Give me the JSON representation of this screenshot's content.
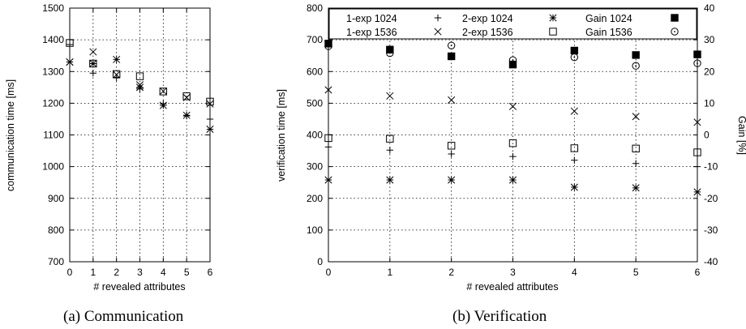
{
  "chart_data": [
    {
      "type": "scatter",
      "caption": "(a) Communication",
      "xlabel": "# revealed attributes",
      "ylabel": "communication time [ms]",
      "xlim": [
        0,
        6
      ],
      "ylim": [
        700,
        1500
      ],
      "xticks": [
        0,
        1,
        2,
        3,
        4,
        5,
        6
      ],
      "yticks": [
        700,
        800,
        900,
        1000,
        1100,
        1200,
        1300,
        1400,
        1500
      ],
      "grid": true,
      "series": [
        {
          "key": "exp1_1024",
          "marker": "plus",
          "x": [
            0,
            1,
            2,
            3,
            4,
            5,
            6
          ],
          "y": [
            1385,
            1295,
            1280,
            1245,
            1198,
            1160,
            1150
          ]
        },
        {
          "key": "exp1_1536",
          "marker": "cross",
          "x": [
            0,
            1,
            2,
            3,
            4,
            5,
            6
          ],
          "y": [
            1330,
            1362,
            1290,
            1258,
            1238,
            1218,
            1198
          ]
        },
        {
          "key": "exp2_1024",
          "marker": "star",
          "x": [
            0,
            1,
            2,
            3,
            4,
            5,
            6
          ],
          "y": [
            1330,
            1325,
            1338,
            1250,
            1193,
            1162,
            1118
          ]
        },
        {
          "key": "exp2_1536",
          "marker": "box",
          "x": [
            0,
            1,
            2,
            3,
            4,
            5,
            6
          ],
          "y": [
            1390,
            1325,
            1292,
            1285,
            1237,
            1222,
            1205
          ]
        }
      ]
    },
    {
      "type": "scatter",
      "caption": "(b) Verification",
      "xlabel": "# revealed attributes",
      "ylabel": "verification time [ms]",
      "y2label": "Gain [%]",
      "xlim": [
        0,
        6
      ],
      "ylim": [
        0,
        800
      ],
      "y2lim": [
        -40,
        40
      ],
      "xticks": [
        0,
        1,
        2,
        3,
        4,
        5,
        6
      ],
      "yticks": [
        0,
        100,
        200,
        300,
        400,
        500,
        600,
        700,
        800
      ],
      "y2ticks": [
        -40,
        -30,
        -20,
        -10,
        0,
        10,
        20,
        30,
        40
      ],
      "grid": true,
      "legend": "top",
      "series": [
        {
          "name": "1-exp 1024",
          "marker": "plus",
          "axis": "left",
          "x": [
            0,
            1,
            2,
            3,
            4,
            5,
            6
          ],
          "y": [
            362,
            352,
            340,
            332,
            320,
            310,
            300
          ]
        },
        {
          "name": "1-exp 1536",
          "marker": "cross",
          "axis": "left",
          "x": [
            0,
            1,
            2,
            3,
            4,
            5,
            6
          ],
          "y": [
            542,
            523,
            510,
            490,
            475,
            458,
            440
          ]
        },
        {
          "name": "2-exp 1024",
          "marker": "star",
          "axis": "left",
          "x": [
            0,
            1,
            2,
            3,
            4,
            5,
            6
          ],
          "y": [
            258,
            258,
            258,
            258,
            235,
            233,
            220
          ]
        },
        {
          "name": "2-exp 1536",
          "marker": "box",
          "axis": "left",
          "x": [
            0,
            1,
            2,
            3,
            4,
            5,
            6
          ],
          "y": [
            390,
            388,
            366,
            374,
            358,
            357,
            345
          ]
        },
        {
          "name": "Gain 1024",
          "marker": "filledbox",
          "axis": "right",
          "x": [
            0,
            1,
            2,
            3,
            4,
            5,
            6
          ],
          "y": [
            28.8,
            26.9,
            24.8,
            22.2,
            26.6,
            25.2,
            25.4
          ]
        },
        {
          "name": "Gain 1536",
          "marker": "circle",
          "axis": "right",
          "x": [
            0,
            1,
            2,
            3,
            4,
            5,
            6
          ],
          "y": [
            28.0,
            25.8,
            28.2,
            23.6,
            24.5,
            21.8,
            22.6
          ]
        }
      ]
    }
  ]
}
